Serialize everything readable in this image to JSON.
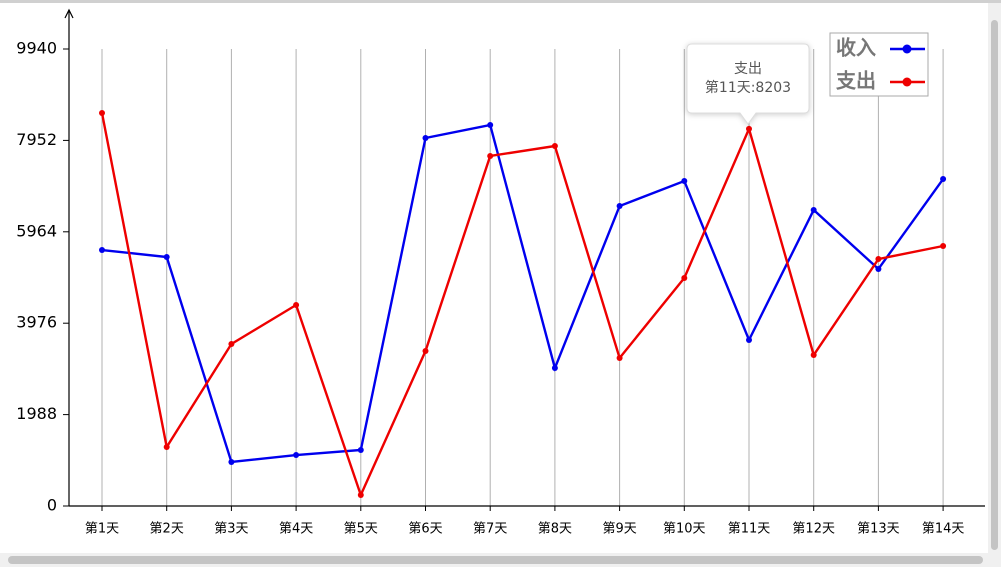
{
  "chart_data": {
    "type": "line",
    "categories": [
      "第1天",
      "第2天",
      "第3天",
      "第4天",
      "第5天",
      "第6天",
      "第7天",
      "第8天",
      "第9天",
      "第10天",
      "第11天",
      "第12天",
      "第13天",
      "第14天"
    ],
    "series": [
      {
        "name": "收入",
        "color": "#0000ee",
        "values": [
          5568,
          5416,
          957,
          1109,
          1218,
          8004,
          8287,
          3001,
          6525,
          7069,
          3611,
          6438,
          5155,
          7112
        ]
      },
      {
        "name": "支出",
        "color": "#ee0000",
        "values": [
          8548,
          1283,
          3524,
          4372,
          239,
          3371,
          7613,
          7830,
          3219,
          4959,
          8203,
          3284,
          5372,
          5655
        ]
      }
    ],
    "ylim": [
      0,
      9940
    ],
    "yticks": [
      0,
      1988,
      3976,
      5964,
      7952,
      9940
    ],
    "grid": true,
    "legend": "top-right",
    "tooltip": {
      "title": "支出",
      "text": "第11天:8203"
    }
  }
}
